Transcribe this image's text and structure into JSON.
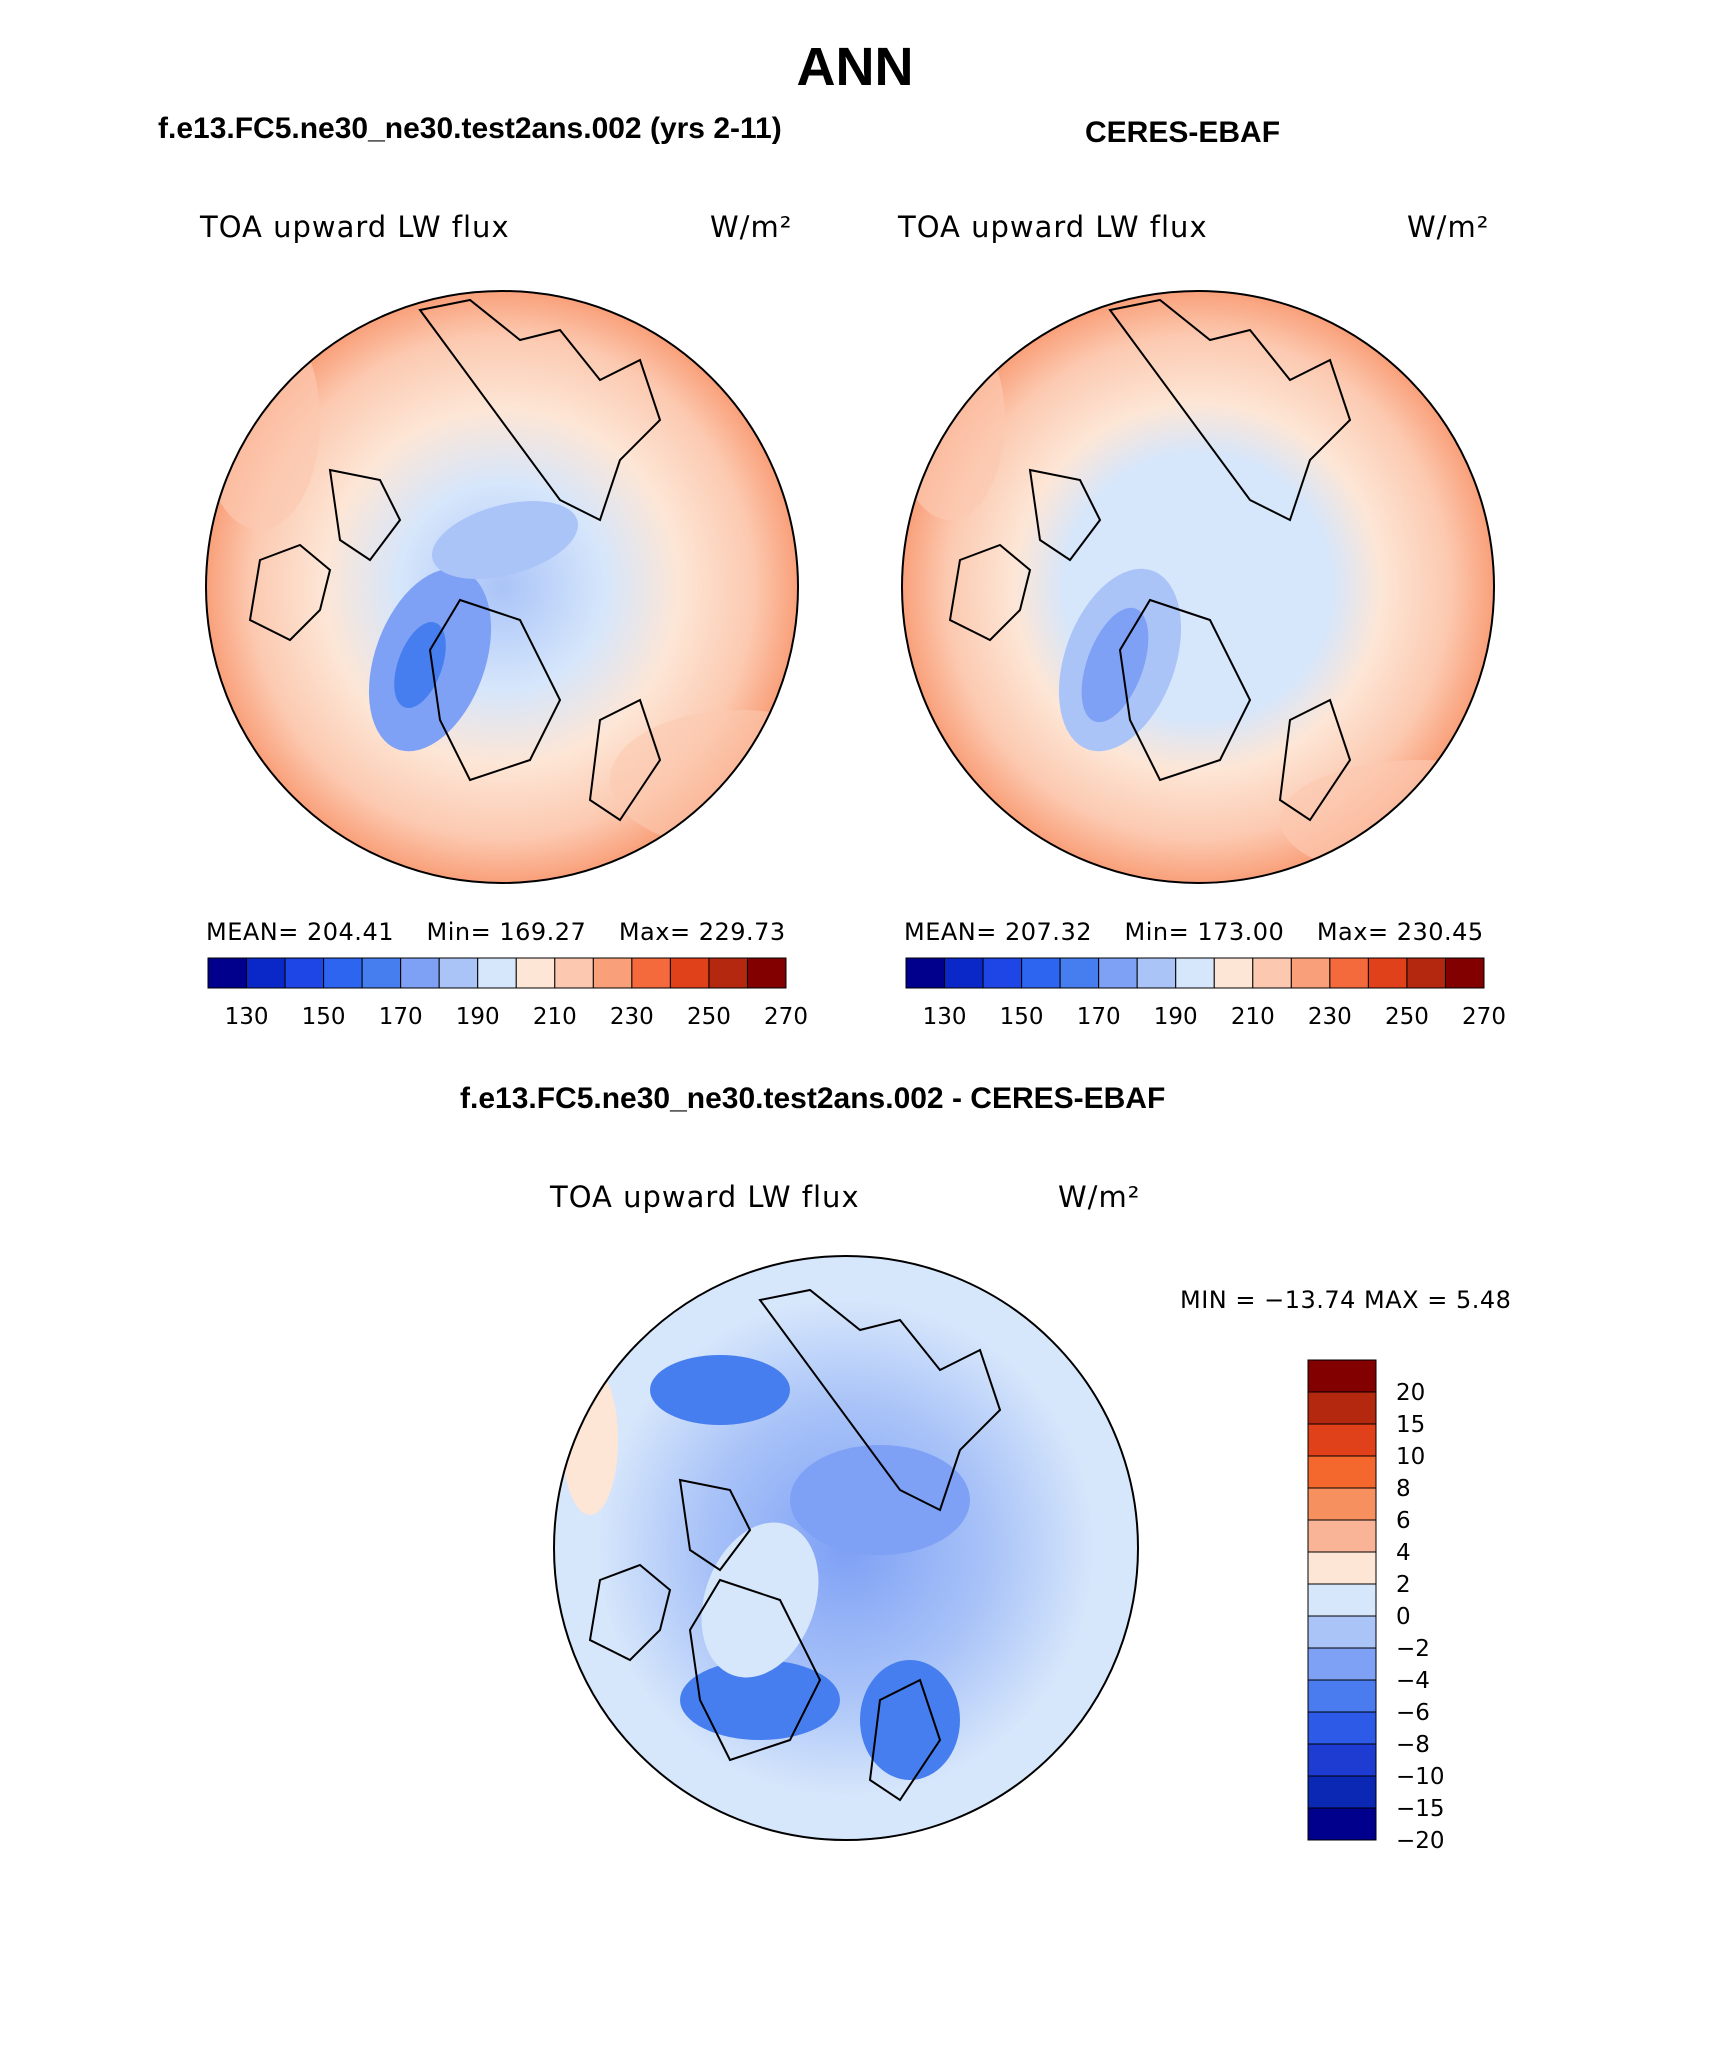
{
  "title": "ANN",
  "panels": [
    {
      "id": "model",
      "case_title": "f.e13.FC5.ne30_ne30.test2ans.002 (yrs 2-11)",
      "variable": "TOA upward LW flux",
      "units": "W/m²",
      "stats": {
        "mean_label": "MEAN=",
        "mean": "204.41",
        "min_label": "Min=",
        "min": "169.27",
        "max_label": "Max=",
        "max": "229.73"
      }
    },
    {
      "id": "obs",
      "case_title": "CERES-EBAF",
      "variable": "TOA upward LW flux",
      "units": "W/m²",
      "stats": {
        "mean_label": "MEAN=",
        "mean": "207.32",
        "min_label": "Min=",
        "min": "173.00",
        "max_label": "Max=",
        "max": "230.45"
      }
    },
    {
      "id": "diff",
      "case_title": "f.e13.FC5.ne30_ne30.test2ans.002 - CERES-EBAF",
      "variable": "TOA upward LW flux",
      "units": "W/m²",
      "stats_text": "MIN = −13.74 MAX =    5.48"
    }
  ],
  "chart_data": [
    {
      "type": "heatmap",
      "title": "TOA upward LW flux",
      "units": "W/m²",
      "projection": "north polar stereographic",
      "colorbar_levels": [
        130,
        140,
        150,
        160,
        170,
        180,
        190,
        200,
        210,
        220,
        230,
        240,
        250,
        260,
        270
      ],
      "colorbar_tick_labels": [
        "130",
        "150",
        "170",
        "190",
        "210",
        "230",
        "250",
        "270"
      ],
      "mean": 204.41,
      "min": 169.27,
      "max": 229.73
    },
    {
      "type": "heatmap",
      "title": "TOA upward LW flux",
      "units": "W/m²",
      "projection": "north polar stereographic",
      "colorbar_levels": [
        130,
        140,
        150,
        160,
        170,
        180,
        190,
        200,
        210,
        220,
        230,
        240,
        250,
        260,
        270
      ],
      "colorbar_tick_labels": [
        "130",
        "150",
        "170",
        "190",
        "210",
        "230",
        "250",
        "270"
      ],
      "mean": 207.32,
      "min": 173.0,
      "max": 230.45
    },
    {
      "type": "heatmap",
      "title": "TOA upward LW flux",
      "units": "W/m²",
      "projection": "north polar stereographic",
      "colorbar_levels": [
        -20,
        -15,
        -10,
        -8,
        -6,
        -4,
        -2,
        0,
        2,
        4,
        6,
        8,
        10,
        15,
        20
      ],
      "colorbar_tick_labels": [
        "20",
        "15",
        "10",
        "8",
        "6",
        "4",
        "2",
        "0",
        "−2",
        "−4",
        "−6",
        "−8",
        "−10",
        "−15",
        "−20"
      ],
      "min": -13.74,
      "max": 5.48
    }
  ],
  "colors": {
    "abs_scale": [
      "#00008c",
      "#0a28c8",
      "#1e46e6",
      "#2d64f0",
      "#467ef0",
      "#7ea0f5",
      "#aac4f8",
      "#d6e6fb",
      "#fde6d6",
      "#fcc9b0",
      "#f9a07a",
      "#f46a3c",
      "#e0401a",
      "#b42810",
      "#820000"
    ],
    "diff_scale": [
      "#00008c",
      "#0a28b4",
      "#1e3cd2",
      "#2d5ae6",
      "#4a7cf0",
      "#7ea0f5",
      "#aac4f8",
      "#d6e6fb",
      "#fde6d6",
      "#f9b497",
      "#f6905f",
      "#f4682e",
      "#e0401a",
      "#b42810",
      "#820000"
    ]
  }
}
